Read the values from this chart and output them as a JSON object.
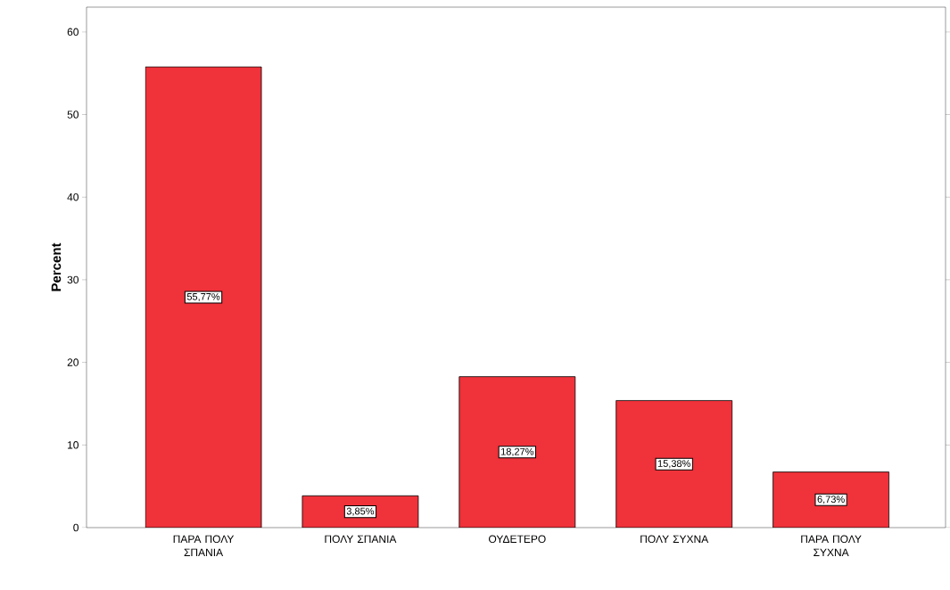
{
  "chart_data": {
    "type": "bar",
    "ylabel": "Percent",
    "categories": [
      "ΠΑΡΑ ΠΟΛΥ ΣΠΑΝΙΑ",
      "ΠΟΛΥ ΣΠΑΝΙΑ",
      "ΟΥΔΕΤΕΡΟ",
      "ΠΟΛΥ ΣΥΧΝΑ",
      "ΠΑΡΑ ΠΟΛΥ ΣΥΧΝΑ"
    ],
    "values": [
      55.77,
      3.85,
      18.27,
      15.38,
      6.73
    ],
    "value_labels": [
      "55,77%",
      "3,85%",
      "18,27%",
      "15,38%",
      "6,73%"
    ],
    "color": "#f0323a",
    "ylim": [
      0,
      63
    ],
    "yticks": [
      0,
      10,
      20,
      30,
      40,
      50,
      60
    ]
  }
}
